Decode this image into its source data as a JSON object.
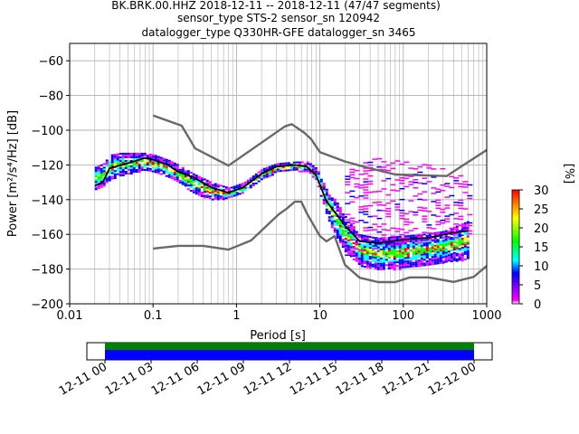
{
  "chart_data": {
    "type": "heatmap",
    "title_lines": [
      "BK.BRK.00.HHZ   2018-12-11 -- 2018-12-11  (47/47 segments)",
      "sensor_type STS-2 sensor_sn 120942",
      "datalogger_type Q330HR-GFE datalogger_sn 3465"
    ],
    "xlabel": "Period [s]",
    "ylabel": "Power [m²/s⁴/Hz] [dB]",
    "x_scale": "log",
    "xlim": [
      0.01,
      1000
    ],
    "ylim": [
      -200,
      -50
    ],
    "x_ticks": [
      {
        "v": 0.01,
        "label": "0.01"
      },
      {
        "v": 0.1,
        "label": "0.1"
      },
      {
        "v": 1,
        "label": "1"
      },
      {
        "v": 10,
        "label": "10"
      },
      {
        "v": 100,
        "label": "100"
      },
      {
        "v": 1000,
        "label": "1000"
      }
    ],
    "y_ticks": [
      {
        "v": -60,
        "label": "−60"
      },
      {
        "v": -80,
        "label": "−80"
      },
      {
        "v": -100,
        "label": "−100"
      },
      {
        "v": -120,
        "label": "−120"
      },
      {
        "v": -140,
        "label": "−140"
      },
      {
        "v": -160,
        "label": "−160"
      },
      {
        "v": -180,
        "label": "−180"
      },
      {
        "v": -200,
        "label": "−200"
      }
    ],
    "grid": true,
    "colorbar": {
      "label": "[%]",
      "range": [
        0,
        30
      ],
      "ticks": [
        {
          "v": 0,
          "label": "0"
        },
        {
          "v": 5,
          "label": "5"
        },
        {
          "v": 10,
          "label": "10"
        },
        {
          "v": 15,
          "label": "15"
        },
        {
          "v": 20,
          "label": "20"
        },
        {
          "v": 25,
          "label": "25"
        },
        {
          "v": 30,
          "label": "30"
        }
      ],
      "colors": [
        "#ffffff",
        "#ff00ff",
        "#0000ff",
        "#00ffff",
        "#00ff00",
        "#ffff00",
        "#ff0000"
      ]
    },
    "density_band": [
      [
        0.02,
        -134,
        -121
      ],
      [
        0.025,
        -132,
        -119
      ],
      [
        0.03,
        -128,
        -114
      ],
      [
        0.04,
        -126,
        -113
      ],
      [
        0.06,
        -124,
        -113
      ],
      [
        0.08,
        -123,
        -113
      ],
      [
        0.1,
        -124,
        -114
      ],
      [
        0.15,
        -127,
        -117
      ],
      [
        0.2,
        -130,
        -120
      ],
      [
        0.3,
        -136,
        -125
      ],
      [
        0.5,
        -140,
        -130
      ],
      [
        0.8,
        -139,
        -133
      ],
      [
        1.2,
        -136,
        -130
      ],
      [
        2,
        -128,
        -122
      ],
      [
        3,
        -124,
        -119
      ],
      [
        5,
        -123,
        -118
      ],
      [
        7,
        -124,
        -118
      ],
      [
        9,
        -130,
        -122
      ],
      [
        12,
        -150,
        -135
      ],
      [
        15,
        -160,
        -140
      ],
      [
        20,
        -170,
        -150
      ],
      [
        30,
        -178,
        -160
      ],
      [
        50,
        -180,
        -162
      ],
      [
        80,
        -180,
        -161
      ],
      [
        150,
        -178,
        -160
      ],
      [
        300,
        -176,
        -158
      ],
      [
        600,
        -174,
        -152
      ]
    ],
    "sparse_band": [
      [
        20,
        -172,
        -120
      ],
      [
        30,
        -170,
        -117
      ],
      [
        50,
        -168,
        -116
      ],
      [
        100,
        -166,
        -118
      ],
      [
        200,
        -164,
        -120
      ],
      [
        400,
        -162,
        -124
      ],
      [
        600,
        -160,
        -130
      ]
    ],
    "series": [
      {
        "name": "",
        "color": "#000000",
        "points": [
          [
            0.02,
            -132
          ],
          [
            0.025,
            -130
          ],
          [
            0.03,
            -122
          ],
          [
            0.05,
            -119
          ],
          [
            0.08,
            -116
          ],
          [
            0.1,
            -117
          ],
          [
            0.15,
            -120
          ],
          [
            0.2,
            -124
          ],
          [
            0.3,
            -127
          ],
          [
            0.5,
            -133
          ],
          [
            0.8,
            -136
          ],
          [
            1.2,
            -133
          ],
          [
            2,
            -125
          ],
          [
            3,
            -121
          ],
          [
            5,
            -120
          ],
          [
            7,
            -121
          ],
          [
            9,
            -126
          ],
          [
            12,
            -141
          ],
          [
            15,
            -147
          ],
          [
            20,
            -155
          ],
          [
            30,
            -164
          ],
          [
            50,
            -165
          ],
          [
            100,
            -163
          ],
          [
            200,
            -162
          ],
          [
            400,
            -159
          ],
          [
            600,
            -158
          ]
        ]
      },
      {
        "name": "",
        "color": "#696969",
        "points": [
          [
            0.1,
            -91.5
          ],
          [
            0.22,
            -97.4
          ],
          [
            0.32,
            -110.5
          ],
          [
            0.8,
            -120.4
          ],
          [
            3.8,
            -97.8
          ],
          [
            4.6,
            -96.5
          ],
          [
            6.5,
            -101.5
          ],
          [
            7.8,
            -105
          ],
          [
            10,
            -112.6
          ],
          [
            20,
            -118
          ],
          [
            40,
            -122
          ],
          [
            80,
            -125.5
          ],
          [
            330,
            -126.4
          ],
          [
            1000,
            -111.4
          ]
        ]
      },
      {
        "name": "",
        "color": "#696969",
        "points": [
          [
            0.1,
            -168.2
          ],
          [
            0.2,
            -166.6
          ],
          [
            0.4,
            -166.6
          ],
          [
            0.8,
            -168.8
          ],
          [
            1.5,
            -163.5
          ],
          [
            3.2,
            -148.5
          ],
          [
            4,
            -145.2
          ],
          [
            5,
            -141.2
          ],
          [
            6,
            -141.2
          ],
          [
            7,
            -148
          ],
          [
            10,
            -161
          ],
          [
            12,
            -164
          ],
          [
            15,
            -161
          ],
          [
            20,
            -177.6
          ],
          [
            30,
            -185
          ],
          [
            50,
            -187.5
          ],
          [
            80,
            -187.5
          ],
          [
            120,
            -184.8
          ],
          [
            200,
            -184.8
          ],
          [
            400,
            -187.4
          ],
          [
            700,
            -184.5
          ],
          [
            1000,
            -178.2
          ]
        ]
      }
    ],
    "timeline": {
      "tick_labels": [
        "12-11 00",
        "12-11 03",
        "12-11 06",
        "12-11 09",
        "12-11 12",
        "12-11 15",
        "12-11 18",
        "12-11 21",
        "12-12 00"
      ],
      "coverage_colors": [
        "#008000",
        "#0000ff"
      ]
    }
  }
}
